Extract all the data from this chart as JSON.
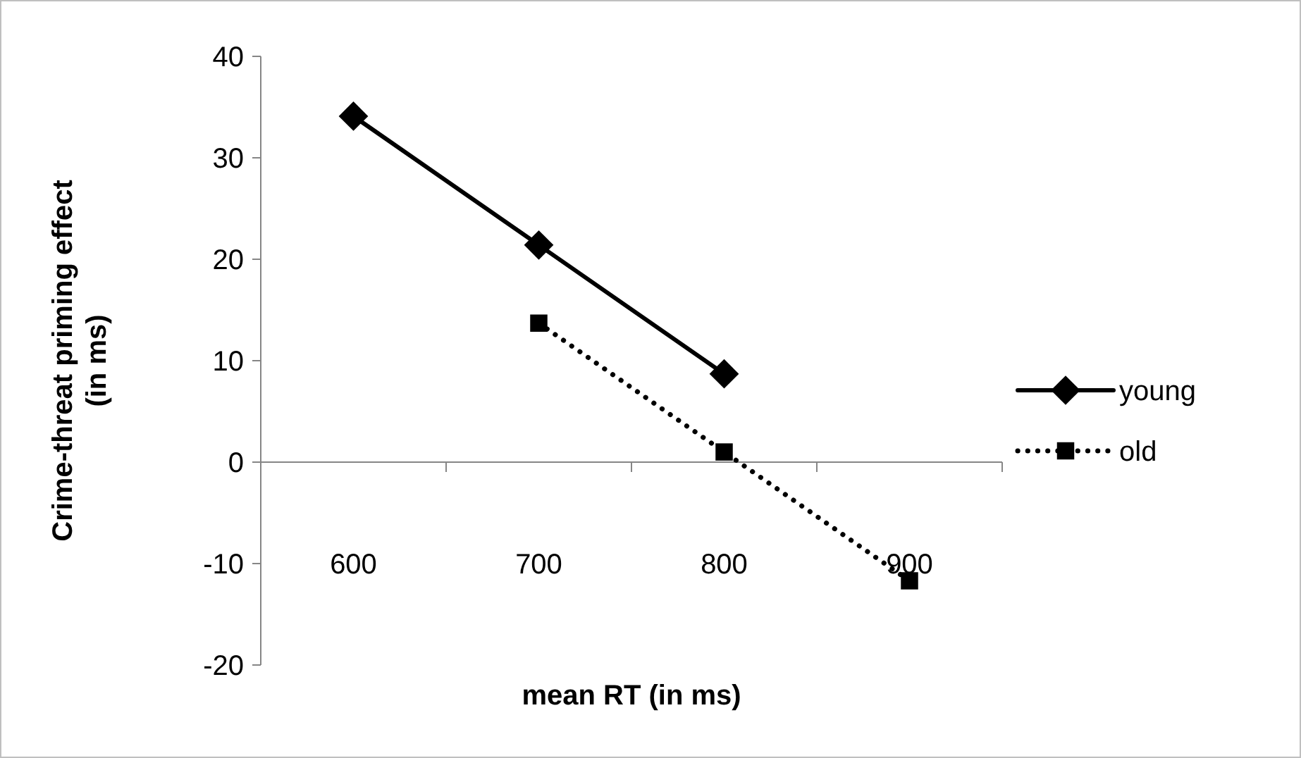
{
  "chart_data": {
    "type": "line",
    "xlabel": "mean RT (in ms)",
    "ylabel": "Crime-threat priming effect (in ms)",
    "categories": [
      "600",
      "700",
      "800",
      "900"
    ],
    "series": [
      {
        "name": "young",
        "color": "#000000",
        "values": [
          34.1,
          21.4,
          8.7,
          null
        ],
        "marker": "diamond",
        "line_style": "solid"
      },
      {
        "name": "old",
        "color": "#000000",
        "values": [
          null,
          13.7,
          1.0,
          -11.7
        ],
        "marker": "square",
        "line_style": "dotted"
      }
    ],
    "ylim": [
      -20,
      40
    ],
    "yticks": [
      -20,
      -10,
      0,
      10,
      20,
      30,
      40
    ],
    "legend": "right"
  }
}
